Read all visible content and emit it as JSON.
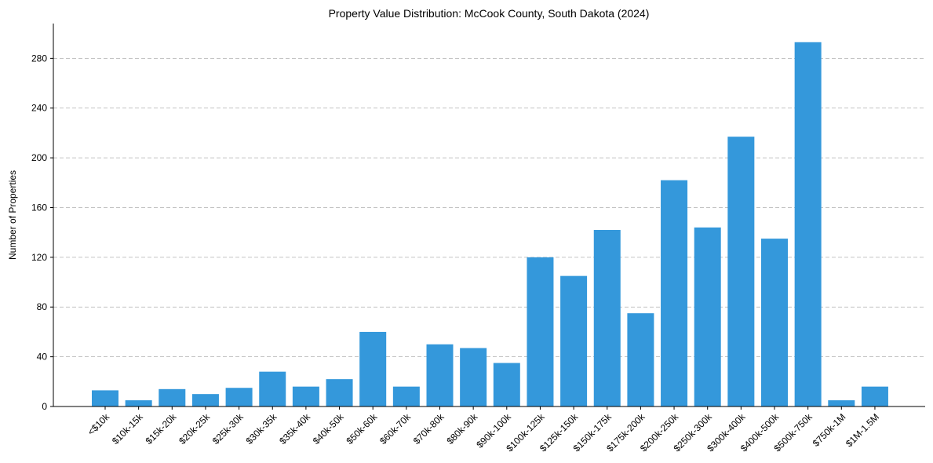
{
  "chart_data": {
    "type": "bar",
    "title": "Property Value Distribution: McCook County, South Dakota (2024)",
    "xlabel": "",
    "ylabel": "Number of Properties",
    "categories": [
      "<$10k",
      "$10k-15k",
      "$15k-20k",
      "$20k-25k",
      "$25k-30k",
      "$30k-35k",
      "$35k-40k",
      "$40k-50k",
      "$50k-60k",
      "$60k-70k",
      "$70k-80k",
      "$80k-90k",
      "$90k-100k",
      "$100k-125k",
      "$125k-150k",
      "$150k-175k",
      "$175k-200k",
      "$200k-250k",
      "$250k-300k",
      "$300k-400k",
      "$400k-500k",
      "$500k-750k",
      "$750k-1M",
      "$1M-1.5M"
    ],
    "values": [
      13,
      5,
      14,
      10,
      15,
      28,
      16,
      22,
      60,
      16,
      50,
      47,
      35,
      120,
      105,
      142,
      75,
      182,
      144,
      217,
      135,
      293,
      5,
      16
    ],
    "yticks": [
      0,
      40,
      80,
      120,
      160,
      200,
      240,
      280
    ],
    "ylim": [
      0,
      308
    ],
    "grid": "y-dashed",
    "bar_color": "#3498db"
  }
}
